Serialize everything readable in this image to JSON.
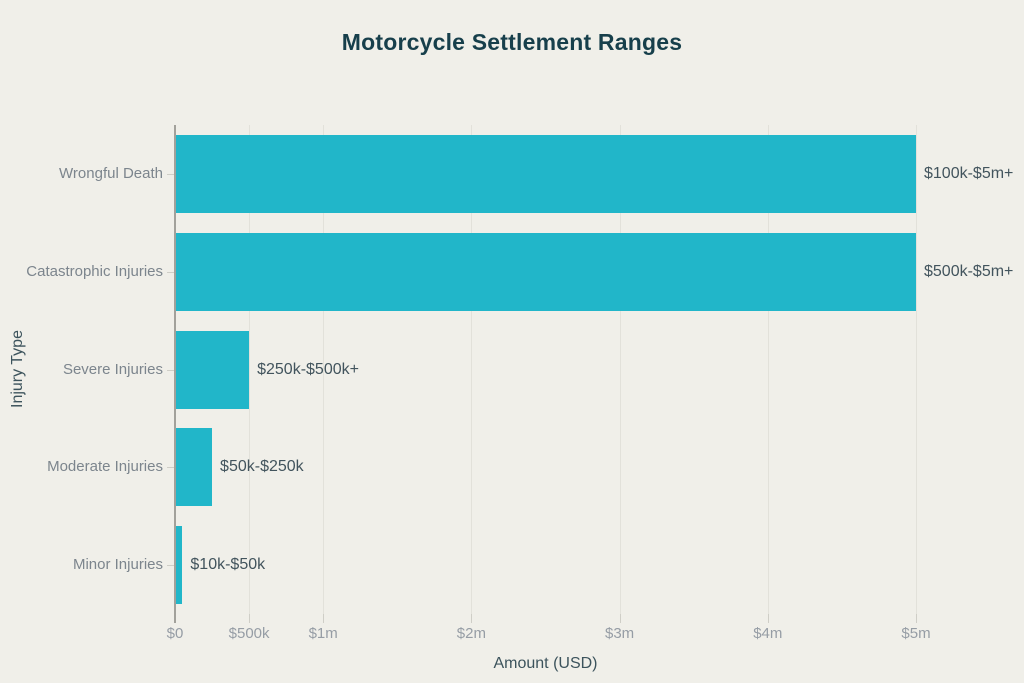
{
  "title": "Motorcycle Settlement Ranges",
  "colors": {
    "background": "#f0efe9",
    "bar": "#21b6c9",
    "title_text": "#173f4b",
    "category_label": "#7c858d",
    "value_label": "#42545d",
    "tick_label": "#969da5",
    "axis_title": "#3c535c",
    "axis_line": "#a2a19b",
    "gridline": "#e2e1da"
  },
  "chart_data": {
    "type": "bar",
    "orientation": "horizontal",
    "title": "Motorcycle Settlement Ranges",
    "xlabel": "Amount (USD)",
    "ylabel": "Injury Type",
    "categories": [
      "Wrongful Death",
      "Catastrophic Injuries",
      "Severe Injuries",
      "Moderate Injuries",
      "Minor Injuries"
    ],
    "values": [
      5000000,
      5000000,
      500000,
      250000,
      50000
    ],
    "bar_labels": [
      "$100k-$5m+",
      "$500k-$5m+",
      "$250k-$500k+",
      "$50k-$250k",
      "$10k-$50k"
    ],
    "xlim": [
      0,
      5000000
    ],
    "x_ticks": [
      {
        "value": 0,
        "label": "$0"
      },
      {
        "value": 500000,
        "label": "$500k"
      },
      {
        "value": 1000000,
        "label": "$1m"
      },
      {
        "value": 2000000,
        "label": "$2m"
      },
      {
        "value": 3000000,
        "label": "$3m"
      },
      {
        "value": 4000000,
        "label": "$4m"
      },
      {
        "value": 5000000,
        "label": "$5m"
      }
    ],
    "grid": true,
    "legend": false
  }
}
